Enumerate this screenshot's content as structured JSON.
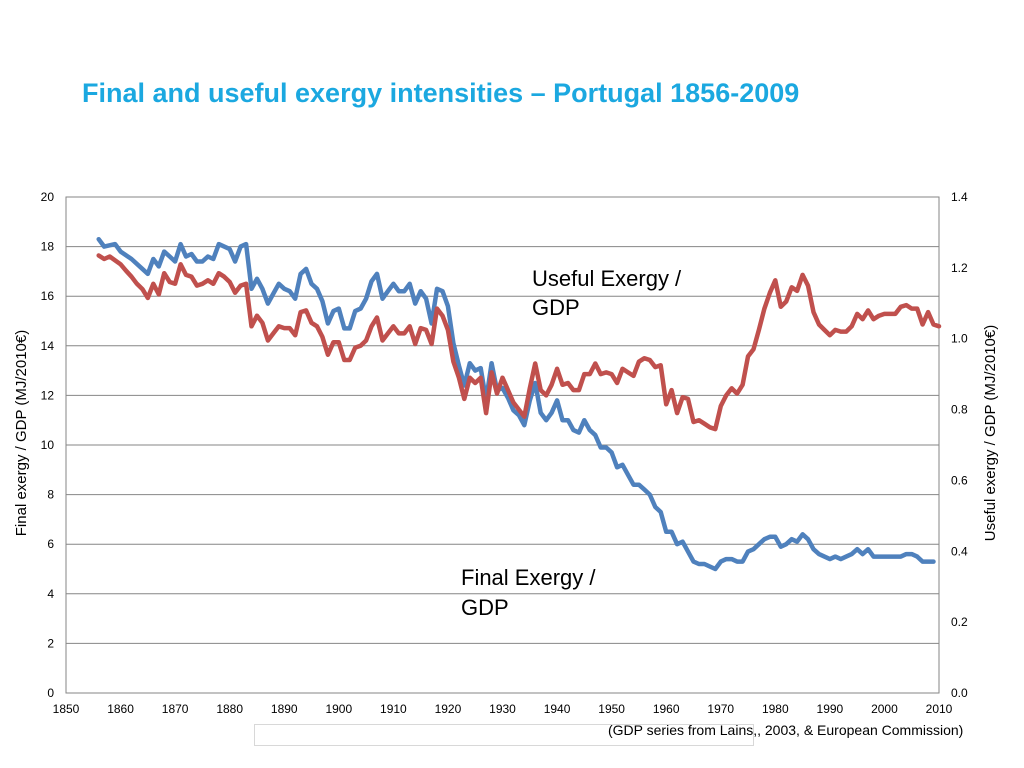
{
  "title": "Final and useful exergy intensities – Portugal 1856-2009",
  "source_note": "(GDP series from Lains,, 2003, & European Commission)",
  "chart_data": {
    "type": "line",
    "title": "Final and useful exergy intensities – Portugal 1856-2009",
    "xlabel": "",
    "ylabel_left": "Final exergy / GDP (MJ/2010€)",
    "ylabel_right": "Useful exergy / GDP (MJ/2010€)",
    "xlim": [
      1850,
      2010
    ],
    "ylim_left": [
      0,
      20
    ],
    "ylim_right": [
      0,
      1.4
    ],
    "x_ticks": [
      "1850",
      "1860",
      "1870",
      "1880",
      "1890",
      "1900",
      "1910",
      "1920",
      "1930",
      "1940",
      "1950",
      "1960",
      "1970",
      "1980",
      "1990",
      "2000",
      "2010"
    ],
    "y_left_ticks": [
      "0",
      "2",
      "4",
      "6",
      "8",
      "10",
      "12",
      "14",
      "16",
      "18",
      "20"
    ],
    "y_right_ticks": [
      "0.0",
      "0.2",
      "0.4",
      "0.6",
      "0.8",
      "1.0",
      "1.2",
      "1.4"
    ],
    "grid": true,
    "annotations": [
      {
        "text_lines": [
          "Useful Exergy /",
          "GDP"
        ],
        "series": "Useful Exergy / GDP"
      },
      {
        "text_lines": [
          "Final Exergy /",
          "GDP"
        ],
        "series": "Final Exergy / GDP"
      }
    ],
    "series": [
      {
        "name": "Final Exergy / GDP",
        "axis": "left",
        "color": "#4f81bd",
        "points": [
          [
            1856,
            18.3
          ],
          [
            1857,
            18.0
          ],
          [
            1859,
            18.1
          ],
          [
            1860,
            17.8
          ],
          [
            1862,
            17.5
          ],
          [
            1864,
            17.1
          ],
          [
            1865,
            16.9
          ],
          [
            1866,
            17.5
          ],
          [
            1867,
            17.2
          ],
          [
            1868,
            17.8
          ],
          [
            1869,
            17.6
          ],
          [
            1870,
            17.4
          ],
          [
            1871,
            18.1
          ],
          [
            1872,
            17.6
          ],
          [
            1873,
            17.7
          ],
          [
            1874,
            17.4
          ],
          [
            1875,
            17.4
          ],
          [
            1876,
            17.6
          ],
          [
            1877,
            17.5
          ],
          [
            1878,
            18.1
          ],
          [
            1880,
            17.9
          ],
          [
            1881,
            17.4
          ],
          [
            1882,
            18.0
          ],
          [
            1883,
            18.1
          ],
          [
            1884,
            16.3
          ],
          [
            1885,
            16.7
          ],
          [
            1886,
            16.3
          ],
          [
            1887,
            15.7
          ],
          [
            1888,
            16.1
          ],
          [
            1889,
            16.5
          ],
          [
            1890,
            16.3
          ],
          [
            1891,
            16.2
          ],
          [
            1892,
            15.9
          ],
          [
            1893,
            16.9
          ],
          [
            1894,
            17.1
          ],
          [
            1895,
            16.5
          ],
          [
            1896,
            16.3
          ],
          [
            1897,
            15.8
          ],
          [
            1898,
            14.9
          ],
          [
            1899,
            15.4
          ],
          [
            1900,
            15.5
          ],
          [
            1901,
            14.7
          ],
          [
            1902,
            14.7
          ],
          [
            1903,
            15.4
          ],
          [
            1904,
            15.5
          ],
          [
            1905,
            15.9
          ],
          [
            1906,
            16.6
          ],
          [
            1907,
            16.9
          ],
          [
            1908,
            15.9
          ],
          [
            1909,
            16.2
          ],
          [
            1910,
            16.5
          ],
          [
            1911,
            16.2
          ],
          [
            1912,
            16.2
          ],
          [
            1913,
            16.5
          ],
          [
            1914,
            15.7
          ],
          [
            1915,
            16.2
          ],
          [
            1916,
            15.9
          ],
          [
            1917,
            14.9
          ],
          [
            1918,
            16.3
          ],
          [
            1919,
            16.2
          ],
          [
            1920,
            15.6
          ],
          [
            1921,
            14.1
          ],
          [
            1922,
            13.2
          ],
          [
            1923,
            12.4
          ],
          [
            1924,
            13.3
          ],
          [
            1925,
            13.0
          ],
          [
            1926,
            13.1
          ],
          [
            1927,
            11.8
          ],
          [
            1928,
            13.3
          ],
          [
            1929,
            12.2
          ],
          [
            1930,
            12.3
          ],
          [
            1931,
            11.9
          ],
          [
            1932,
            11.4
          ],
          [
            1933,
            11.2
          ],
          [
            1934,
            10.8
          ],
          [
            1935,
            11.8
          ],
          [
            1936,
            12.5
          ],
          [
            1937,
            11.3
          ],
          [
            1938,
            11.0
          ],
          [
            1939,
            11.3
          ],
          [
            1940,
            11.8
          ],
          [
            1941,
            11.0
          ],
          [
            1942,
            11.0
          ],
          [
            1943,
            10.6
          ],
          [
            1944,
            10.5
          ],
          [
            1945,
            11.0
          ],
          [
            1946,
            10.6
          ],
          [
            1947,
            10.4
          ],
          [
            1948,
            9.9
          ],
          [
            1949,
            9.9
          ],
          [
            1950,
            9.7
          ],
          [
            1951,
            9.1
          ],
          [
            1952,
            9.2
          ],
          [
            1953,
            8.8
          ],
          [
            1954,
            8.4
          ],
          [
            1955,
            8.4
          ],
          [
            1956,
            8.2
          ],
          [
            1957,
            8.0
          ],
          [
            1958,
            7.5
          ],
          [
            1959,
            7.3
          ],
          [
            1960,
            6.5
          ],
          [
            1961,
            6.5
          ],
          [
            1962,
            6.0
          ],
          [
            1963,
            6.1
          ],
          [
            1964,
            5.7
          ],
          [
            1965,
            5.3
          ],
          [
            1966,
            5.2
          ],
          [
            1967,
            5.2
          ],
          [
            1968,
            5.1
          ],
          [
            1969,
            5.0
          ],
          [
            1970,
            5.3
          ],
          [
            1971,
            5.4
          ],
          [
            1972,
            5.4
          ],
          [
            1973,
            5.3
          ],
          [
            1974,
            5.3
          ],
          [
            1975,
            5.7
          ],
          [
            1976,
            5.8
          ],
          [
            1977,
            6.0
          ],
          [
            1978,
            6.2
          ],
          [
            1979,
            6.3
          ],
          [
            1980,
            6.3
          ],
          [
            1981,
            5.9
          ],
          [
            1982,
            6.0
          ],
          [
            1983,
            6.2
          ],
          [
            1984,
            6.1
          ],
          [
            1985,
            6.4
          ],
          [
            1986,
            6.2
          ],
          [
            1987,
            5.8
          ],
          [
            1988,
            5.6
          ],
          [
            1989,
            5.5
          ],
          [
            1990,
            5.4
          ],
          [
            1991,
            5.5
          ],
          [
            1992,
            5.4
          ],
          [
            1993,
            5.5
          ],
          [
            1994,
            5.6
          ],
          [
            1995,
            5.8
          ],
          [
            1996,
            5.6
          ],
          [
            1997,
            5.8
          ],
          [
            1998,
            5.5
          ],
          [
            1999,
            5.5
          ],
          [
            2000,
            5.5
          ],
          [
            2001,
            5.5
          ],
          [
            2002,
            5.5
          ],
          [
            2003,
            5.5
          ],
          [
            2004,
            5.6
          ],
          [
            2005,
            5.6
          ],
          [
            2006,
            5.5
          ],
          [
            2007,
            5.3
          ],
          [
            2008,
            5.3
          ],
          [
            2009,
            5.3
          ]
        ]
      },
      {
        "name": "Useful Exergy / GDP",
        "axis": "right",
        "color": "#c0504d",
        "points": [
          [
            1856,
            1.235
          ],
          [
            1857,
            1.225
          ],
          [
            1858,
            1.232
          ],
          [
            1860,
            1.21
          ],
          [
            1861,
            1.192
          ],
          [
            1862,
            1.175
          ],
          [
            1863,
            1.155
          ],
          [
            1864,
            1.14
          ],
          [
            1865,
            1.115
          ],
          [
            1866,
            1.155
          ],
          [
            1867,
            1.125
          ],
          [
            1868,
            1.185
          ],
          [
            1869,
            1.16
          ],
          [
            1870,
            1.155
          ],
          [
            1871,
            1.21
          ],
          [
            1872,
            1.18
          ],
          [
            1873,
            1.175
          ],
          [
            1874,
            1.15
          ],
          [
            1875,
            1.155
          ],
          [
            1876,
            1.165
          ],
          [
            1877,
            1.155
          ],
          [
            1878,
            1.185
          ],
          [
            1879,
            1.175
          ],
          [
            1880,
            1.16
          ],
          [
            1881,
            1.13
          ],
          [
            1882,
            1.15
          ],
          [
            1883,
            1.155
          ],
          [
            1884,
            1.035
          ],
          [
            1885,
            1.065
          ],
          [
            1886,
            1.045
          ],
          [
            1887,
            0.995
          ],
          [
            1888,
            1.015
          ],
          [
            1889,
            1.035
          ],
          [
            1890,
            1.03
          ],
          [
            1891,
            1.03
          ],
          [
            1892,
            1.01
          ],
          [
            1893,
            1.075
          ],
          [
            1894,
            1.08
          ],
          [
            1895,
            1.045
          ],
          [
            1896,
            1.035
          ],
          [
            1897,
            1.005
          ],
          [
            1898,
            0.955
          ],
          [
            1899,
            0.99
          ],
          [
            1900,
            0.99
          ],
          [
            1901,
            0.94
          ],
          [
            1902,
            0.94
          ],
          [
            1903,
            0.975
          ],
          [
            1904,
            0.98
          ],
          [
            1905,
            0.995
          ],
          [
            1906,
            1.035
          ],
          [
            1907,
            1.06
          ],
          [
            1908,
            0.995
          ],
          [
            1909,
            1.015
          ],
          [
            1910,
            1.035
          ],
          [
            1911,
            1.015
          ],
          [
            1912,
            1.015
          ],
          [
            1913,
            1.035
          ],
          [
            1914,
            0.985
          ],
          [
            1915,
            1.03
          ],
          [
            1916,
            1.025
          ],
          [
            1917,
            0.985
          ],
          [
            1918,
            1.085
          ],
          [
            1919,
            1.065
          ],
          [
            1920,
            1.025
          ],
          [
            1921,
            0.935
          ],
          [
            1922,
            0.89
          ],
          [
            1923,
            0.83
          ],
          [
            1924,
            0.89
          ],
          [
            1925,
            0.875
          ],
          [
            1926,
            0.89
          ],
          [
            1927,
            0.79
          ],
          [
            1928,
            0.905
          ],
          [
            1929,
            0.845
          ],
          [
            1930,
            0.89
          ],
          [
            1931,
            0.855
          ],
          [
            1932,
            0.82
          ],
          [
            1933,
            0.8
          ],
          [
            1934,
            0.78
          ],
          [
            1935,
            0.86
          ],
          [
            1936,
            0.93
          ],
          [
            1937,
            0.855
          ],
          [
            1938,
            0.84
          ],
          [
            1939,
            0.87
          ],
          [
            1940,
            0.915
          ],
          [
            1941,
            0.87
          ],
          [
            1942,
            0.875
          ],
          [
            1943,
            0.855
          ],
          [
            1944,
            0.855
          ],
          [
            1945,
            0.9
          ],
          [
            1946,
            0.9
          ],
          [
            1947,
            0.93
          ],
          [
            1948,
            0.9
          ],
          [
            1949,
            0.905
          ],
          [
            1950,
            0.9
          ],
          [
            1951,
            0.875
          ],
          [
            1952,
            0.915
          ],
          [
            1953,
            0.905
          ],
          [
            1954,
            0.895
          ],
          [
            1955,
            0.935
          ],
          [
            1956,
            0.945
          ],
          [
            1957,
            0.94
          ],
          [
            1958,
            0.92
          ],
          [
            1959,
            0.925
          ],
          [
            1960,
            0.815
          ],
          [
            1961,
            0.855
          ],
          [
            1962,
            0.79
          ],
          [
            1963,
            0.835
          ],
          [
            1964,
            0.83
          ],
          [
            1965,
            0.765
          ],
          [
            1966,
            0.77
          ],
          [
            1967,
            0.76
          ],
          [
            1968,
            0.75
          ],
          [
            1969,
            0.745
          ],
          [
            1970,
            0.81
          ],
          [
            1971,
            0.84
          ],
          [
            1972,
            0.86
          ],
          [
            1973,
            0.845
          ],
          [
            1974,
            0.87
          ],
          [
            1975,
            0.95
          ],
          [
            1976,
            0.97
          ],
          [
            1977,
            1.025
          ],
          [
            1978,
            1.085
          ],
          [
            1979,
            1.13
          ],
          [
            1980,
            1.165
          ],
          [
            1981,
            1.09
          ],
          [
            1982,
            1.105
          ],
          [
            1983,
            1.145
          ],
          [
            1984,
            1.135
          ],
          [
            1985,
            1.18
          ],
          [
            1986,
            1.15
          ],
          [
            1987,
            1.075
          ],
          [
            1988,
            1.04
          ],
          [
            1989,
            1.025
          ],
          [
            1990,
            1.01
          ],
          [
            1991,
            1.025
          ],
          [
            1992,
            1.02
          ],
          [
            1993,
            1.02
          ],
          [
            1994,
            1.035
          ],
          [
            1995,
            1.07
          ],
          [
            1996,
            1.055
          ],
          [
            1997,
            1.08
          ],
          [
            1998,
            1.055
          ],
          [
            1999,
            1.065
          ],
          [
            2000,
            1.07
          ],
          [
            2001,
            1.07
          ],
          [
            2002,
            1.07
          ],
          [
            2003,
            1.09
          ],
          [
            2004,
            1.095
          ],
          [
            2005,
            1.085
          ],
          [
            2006,
            1.085
          ],
          [
            2007,
            1.04
          ],
          [
            2008,
            1.075
          ],
          [
            2009,
            1.04
          ],
          [
            2010,
            1.035
          ]
        ]
      }
    ]
  }
}
